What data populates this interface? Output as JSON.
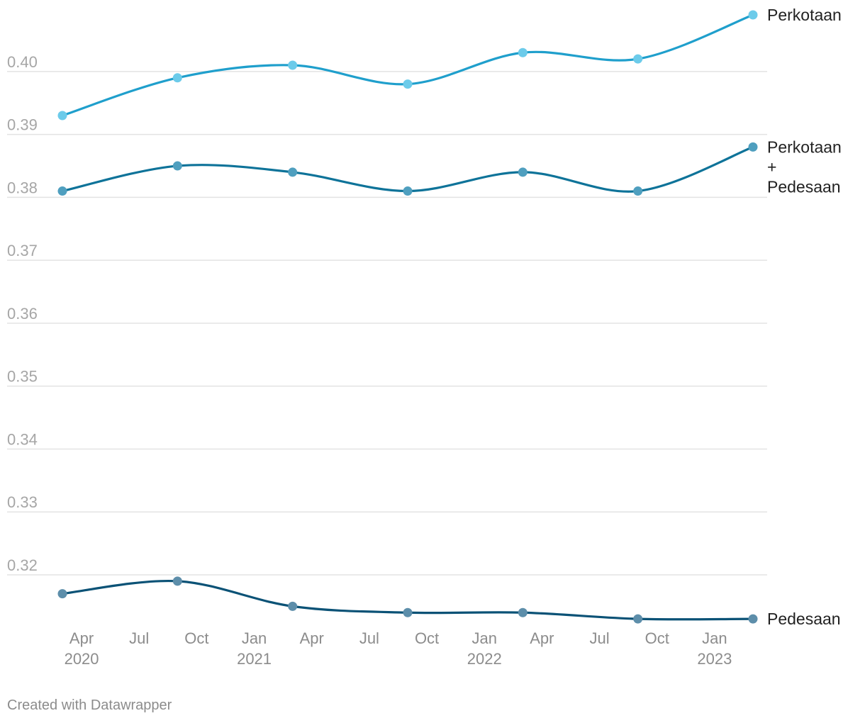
{
  "chart_data": {
    "type": "line",
    "title": "",
    "xlabel": "",
    "ylabel": "",
    "ylim": [
      0.312,
      0.409
    ],
    "yticks": [
      0.32,
      0.33,
      0.34,
      0.35,
      0.36,
      0.37,
      0.38,
      0.39,
      0.4
    ],
    "grid": true,
    "legend": "direct labels at line ends (right)",
    "x": [
      "2020-03",
      "2020-09",
      "2021-03",
      "2021-09",
      "2022-03",
      "2022-09",
      "2023-03"
    ],
    "xticks": [
      {
        "date": "2020-04",
        "label": "Apr",
        "year": "2020"
      },
      {
        "date": "2020-07",
        "label": "Jul",
        "year": ""
      },
      {
        "date": "2020-10",
        "label": "Oct",
        "year": ""
      },
      {
        "date": "2021-01",
        "label": "Jan",
        "year": "2021"
      },
      {
        "date": "2021-04",
        "label": "Apr",
        "year": ""
      },
      {
        "date": "2021-07",
        "label": "Jul",
        "year": ""
      },
      {
        "date": "2021-10",
        "label": "Oct",
        "year": ""
      },
      {
        "date": "2022-01",
        "label": "Jan",
        "year": "2022"
      },
      {
        "date": "2022-04",
        "label": "Apr",
        "year": ""
      },
      {
        "date": "2022-07",
        "label": "Jul",
        "year": ""
      },
      {
        "date": "2022-10",
        "label": "Oct",
        "year": ""
      },
      {
        "date": "2023-01",
        "label": "Jan",
        "year": "2023"
      }
    ],
    "series": [
      {
        "name": "Perkotaan",
        "label_lines": [
          "Perkotaan"
        ],
        "color": "#1f9fcc",
        "dot_color": "#6ccbea",
        "values": [
          0.393,
          0.399,
          0.401,
          0.398,
          0.403,
          0.402,
          0.409
        ]
      },
      {
        "name": "Perkotaan + Pedesaan",
        "label_lines": [
          "Perkotaan",
          "+",
          "Pedesaan"
        ],
        "color": "#0e7399",
        "dot_color": "#4f9fbf",
        "values": [
          0.381,
          0.385,
          0.384,
          0.381,
          0.384,
          0.381,
          0.388
        ]
      },
      {
        "name": "Pedesaan",
        "label_lines": [
          "Pedesaan"
        ],
        "color": "#0b5276",
        "dot_color": "#5d8eaa",
        "values": [
          0.317,
          0.319,
          0.315,
          0.314,
          0.314,
          0.313,
          0.313
        ]
      }
    ]
  },
  "footer": {
    "credit": "Created with Datawrapper"
  }
}
